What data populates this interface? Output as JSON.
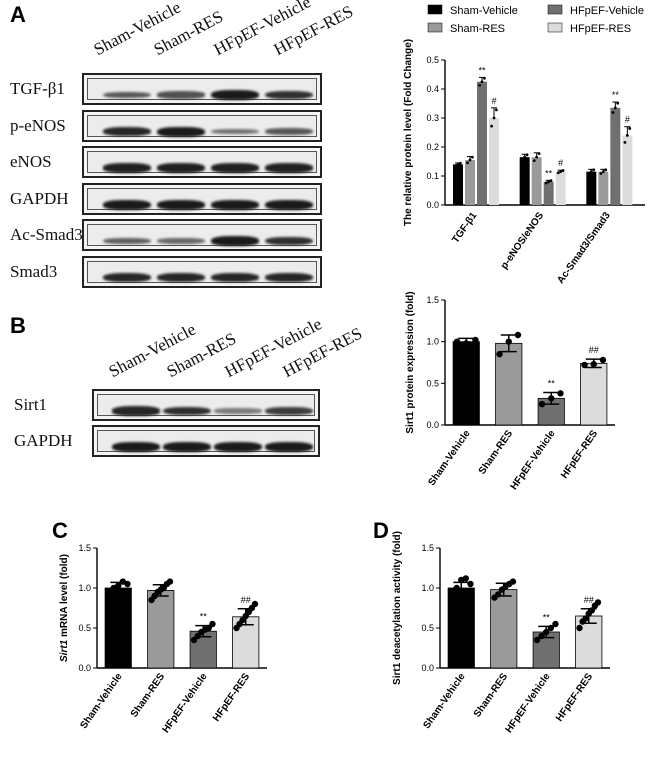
{
  "panels": {
    "a": {
      "letter": "A"
    },
    "b": {
      "letter": "B"
    },
    "c": {
      "letter": "C"
    },
    "d": {
      "letter": "D"
    }
  },
  "blot_a": {
    "lanes": [
      "Sham-Vehicle",
      "Sham-RES",
      "HFpEF-Vehicle",
      "HFpEF-RES"
    ],
    "rows": [
      "TGF-β1",
      "p-eNOS",
      "eNOS",
      "GAPDH",
      "Ac-Smad3",
      "Smad3"
    ],
    "intensities": [
      [
        0.55,
        0.6,
        1.0,
        0.85
      ],
      [
        0.9,
        1.0,
        0.35,
        0.55
      ],
      [
        0.95,
        0.95,
        0.95,
        0.95
      ],
      [
        1.0,
        1.0,
        1.0,
        1.0
      ],
      [
        0.5,
        0.45,
        1.0,
        0.85
      ],
      [
        0.9,
        0.9,
        0.9,
        0.9
      ]
    ]
  },
  "blot_b": {
    "lanes": [
      "Sham-Vehicle",
      "Sham-RES",
      "HFpEF-Vehicle",
      "HFpEF-RES"
    ],
    "rows": [
      "Sirt1",
      "GAPDH"
    ],
    "intensities": [
      [
        0.9,
        0.85,
        0.3,
        0.75
      ],
      [
        1.0,
        1.0,
        1.0,
        1.0
      ]
    ]
  },
  "legend": {
    "entries": [
      {
        "label": "Sham-Vehicle",
        "color": "#000000"
      },
      {
        "label": "Sham-RES",
        "color": "#9a9a9a"
      },
      {
        "label": "HFpEF-Vehicle",
        "color": "#707070"
      },
      {
        "label": "HFpEF-RES",
        "color": "#dcdcdc"
      }
    ]
  },
  "chart_data": [
    {
      "id": "A",
      "type": "bar",
      "ylabel": "The relative protein level (Fold Change)",
      "ylim": [
        0,
        0.5
      ],
      "yticks": [
        "0.0",
        "0.1",
        "0.2",
        "0.3",
        "0.4",
        "0.5"
      ],
      "categories": [
        "TGF-β1",
        "p-eNOS/eNOS",
        "Ac-Smad3/Smad3"
      ],
      "series": [
        {
          "name": "Sham-Vehicle",
          "color": "#000000",
          "values": [
            0.14,
            0.165,
            0.115
          ],
          "errors": [
            0.005,
            0.01,
            0.008
          ],
          "marks": [
            "",
            "",
            ""
          ]
        },
        {
          "name": "Sham-RES",
          "color": "#9a9a9a",
          "values": [
            0.155,
            0.165,
            0.115
          ],
          "errors": [
            0.012,
            0.015,
            0.008
          ],
          "marks": [
            "",
            "",
            ""
          ]
        },
        {
          "name": "HFpEF-Vehicle",
          "color": "#707070",
          "values": [
            0.425,
            0.08,
            0.335
          ],
          "errors": [
            0.015,
            0.005,
            0.02
          ],
          "marks": [
            "**",
            "**",
            "**"
          ]
        },
        {
          "name": "HFpEF-RES",
          "color": "#dcdcdc",
          "values": [
            0.3,
            0.115,
            0.24
          ],
          "errors": [
            0.035,
            0.005,
            0.03
          ],
          "marks": [
            "#",
            "#",
            "#"
          ]
        }
      ]
    },
    {
      "id": "B",
      "type": "bar",
      "ylabel": "Sirt1 protein expression (fold)",
      "ylim": [
        0,
        1.5
      ],
      "yticks": [
        "0.0",
        "0.5",
        "1.0",
        "1.5"
      ],
      "categories": [
        "Sham-Vehicle",
        "Sham-RES",
        "HFpEF-Vehicle",
        "HFpEF-RES"
      ],
      "colors": [
        "#000000",
        "#9a9a9a",
        "#707070",
        "#dcdcdc"
      ],
      "values": [
        1.0,
        0.98,
        0.32,
        0.74
      ],
      "errors": [
        0.04,
        0.1,
        0.07,
        0.05
      ],
      "points": [
        [
          1.0,
          0.98,
          1.02
        ],
        [
          0.85,
          1.0,
          1.08
        ],
        [
          0.25,
          0.32,
          0.38
        ],
        [
          0.72,
          0.73,
          0.78
        ]
      ],
      "marks": [
        "",
        "",
        "**",
        "##"
      ]
    },
    {
      "id": "C",
      "type": "bar",
      "ylabel": "Sirt1 mRNA level (fold)",
      "ylabel_italic": "Sirt1",
      "ylabel_rest": " mRNA level (fold)",
      "ylim": [
        0,
        1.5
      ],
      "yticks": [
        "0.0",
        "0.5",
        "1.0",
        "1.5"
      ],
      "categories": [
        "Sham-Vehicle",
        "Sham-RES",
        "HFpEF-Vehicle",
        "HFpEF-RES"
      ],
      "colors": [
        "#000000",
        "#9a9a9a",
        "#707070",
        "#dcdcdc"
      ],
      "values": [
        1.0,
        0.97,
        0.46,
        0.64
      ],
      "errors": [
        0.07,
        0.07,
        0.07,
        0.1
      ],
      "points": [
        [
          0.95,
          1.0,
          1.03,
          1.08,
          1.05
        ],
        [
          0.85,
          0.9,
          0.95,
          0.98,
          1.0,
          1.05,
          1.08
        ],
        [
          0.35,
          0.4,
          0.45,
          0.48,
          0.5,
          0.55
        ],
        [
          0.5,
          0.55,
          0.6,
          0.65,
          0.7,
          0.75,
          0.8
        ]
      ],
      "marks": [
        "",
        "",
        "**",
        "##"
      ]
    },
    {
      "id": "D",
      "type": "bar",
      "ylabel": "Sirt1 deacetylation activity (fold)",
      "ylim": [
        0,
        1.5
      ],
      "yticks": [
        "0.0",
        "0.5",
        "1.0",
        "1.5"
      ],
      "categories": [
        "Sham-Vehicle",
        "Sham-RES",
        "HFpEF-Vehicle",
        "HFpEF-RES"
      ],
      "colors": [
        "#000000",
        "#9a9a9a",
        "#707070",
        "#dcdcdc"
      ],
      "values": [
        1.0,
        0.98,
        0.45,
        0.65
      ],
      "errors": [
        0.07,
        0.08,
        0.07,
        0.09
      ],
      "points": [
        [
          0.92,
          1.0,
          1.1,
          1.12,
          1.05
        ],
        [
          0.88,
          0.92,
          0.98,
          1.02,
          1.05,
          1.08
        ],
        [
          0.35,
          0.4,
          0.45,
          0.5,
          0.55
        ],
        [
          0.5,
          0.58,
          0.62,
          0.68,
          0.72,
          0.78,
          0.82
        ]
      ],
      "marks": [
        "",
        "",
        "**",
        "##"
      ]
    }
  ]
}
